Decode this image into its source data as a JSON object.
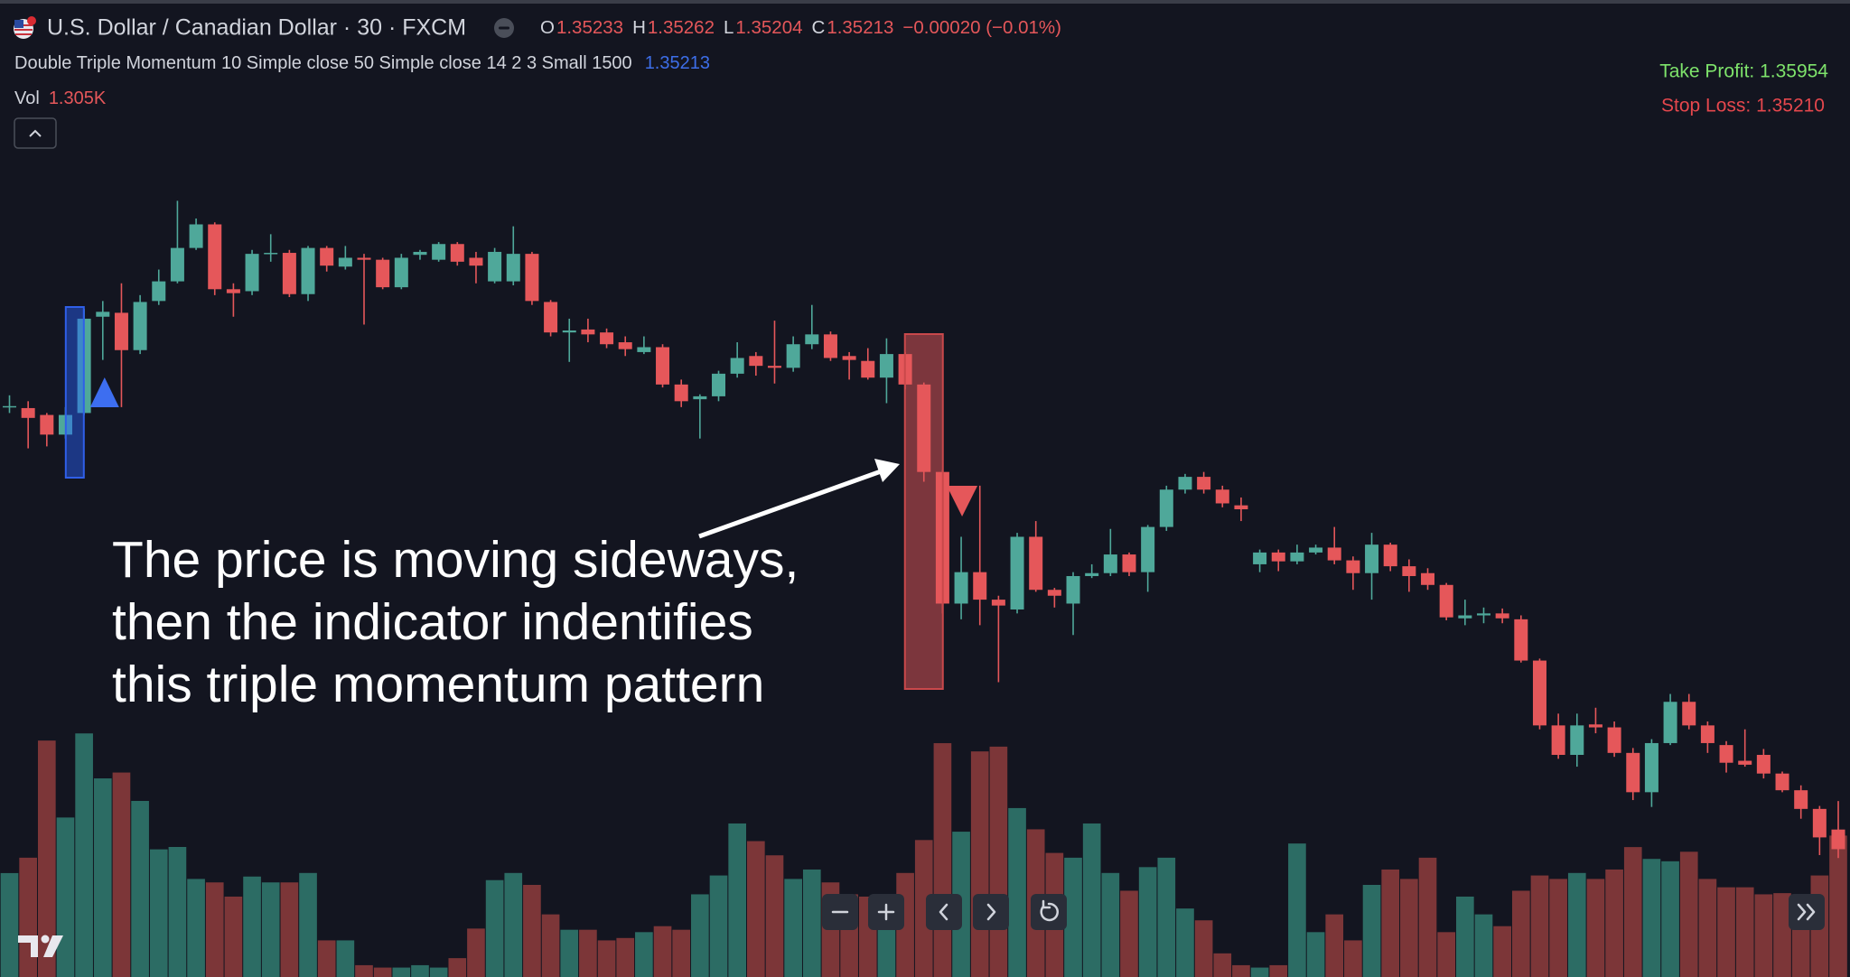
{
  "chart_data": {
    "type": "candlestick",
    "title": "U.S. Dollar / Canadian Dollar · 30 · FXCM",
    "ohlc": [
      {
        "label": "O",
        "value": 1.35233
      },
      {
        "label": "H",
        "value": 1.35262
      },
      {
        "label": "L",
        "value": 1.35204
      },
      {
        "label": "C",
        "value": 1.35213
      }
    ],
    "change": "−0.00020 (−0.01%)",
    "indicator": {
      "name": "Double Triple Momentum 10 Simple close 50 Simple close 14 2 3 Small 1500",
      "value": 1.35213
    },
    "volume_label": {
      "label": "Vol",
      "value": "1.305K"
    },
    "take_profit": "Take Profit: 1.35954",
    "stop_loss": "Stop Loss: 1.35210",
    "annotation": [
      "The price is moving sideways,",
      "then the indicator indentifies",
      "this triple momentum pattern"
    ],
    "up_color": "#4fa89a",
    "down_color": "#e5575a",
    "ylim": [
      1.3515,
      1.359
    ],
    "open": [
      1.35663,
      1.35662,
      1.35655,
      1.35635,
      1.35657,
      1.35755,
      1.35759,
      1.35721,
      1.35771,
      1.35791,
      1.35825,
      1.35849,
      1.35783,
      1.35781,
      1.35819,
      1.3582,
      1.35778,
      1.35825,
      1.35806,
      1.35815,
      1.35813,
      1.35785,
      1.35818,
      1.35813,
      1.35829,
      1.35815,
      1.35791,
      1.35791,
      1.35819,
      1.3577,
      1.35739,
      1.35742,
      1.35739,
      1.35729,
      1.35719,
      1.35724,
      1.35686,
      1.35671,
      1.35674,
      1.35697,
      1.35715,
      1.35705,
      1.35703,
      1.35727,
      1.35737,
      1.35715,
      1.3571,
      1.35693,
      1.35717,
      1.35686,
      1.35597,
      1.35463,
      1.35495,
      1.35467,
      1.35457,
      1.35531,
      1.35477,
      1.35463,
      1.35491,
      1.35494,
      1.35513,
      1.35495,
      1.35541,
      1.35579,
      1.35592,
      1.35579,
      1.35563,
      1.35503,
      1.35515,
      1.35506,
      1.35515,
      1.3552,
      1.35507,
      1.35494,
      1.35523,
      1.35501,
      1.35494,
      1.35482,
      1.35448,
      1.35451,
      1.35453,
      1.35447,
      1.35405,
      1.35339,
      1.35309,
      1.3534,
      1.35337,
      1.35311,
      1.35271,
      1.35321,
      1.35363,
      1.35339,
      1.35319,
      1.35303,
      1.35309,
      1.3529,
      1.35273,
      1.35254,
      1.35233
    ],
    "high": [
      1.35675,
      1.35669,
      1.35657,
      1.35663,
      1.35763,
      1.35771,
      1.35789,
      1.35777,
      1.35803,
      1.35873,
      1.35855,
      1.35851,
      1.35789,
      1.35823,
      1.35839,
      1.35823,
      1.35827,
      1.35827,
      1.35827,
      1.35819,
      1.35815,
      1.35819,
      1.35823,
      1.35831,
      1.35831,
      1.35821,
      1.35825,
      1.35847,
      1.35821,
      1.35772,
      1.35753,
      1.35753,
      1.35743,
      1.35735,
      1.35735,
      1.35727,
      1.35691,
      1.35676,
      1.357,
      1.35729,
      1.35719,
      1.35751,
      1.35735,
      1.35767,
      1.3574,
      1.35719,
      1.35723,
      1.35733,
      1.35719,
      1.35688,
      1.35599,
      1.35531,
      1.35583,
      1.35471,
      1.35535,
      1.35547,
      1.35479,
      1.35495,
      1.35503,
      1.35539,
      1.35515,
      1.35543,
      1.35583,
      1.35595,
      1.35597,
      1.35583,
      1.35571,
      1.35518,
      1.35518,
      1.35523,
      1.35523,
      1.35541,
      1.35511,
      1.35535,
      1.35525,
      1.35508,
      1.35499,
      1.35484,
      1.35467,
      1.35459,
      1.35458,
      1.35451,
      1.35407,
      1.35351,
      1.35351,
      1.35357,
      1.35343,
      1.35316,
      1.35325,
      1.35371,
      1.35371,
      1.35343,
      1.35323,
      1.35335,
      1.35315,
      1.35292,
      1.35278,
      1.35257,
      1.35262
    ],
    "low": [
      1.35657,
      1.35621,
      1.35623,
      1.35631,
      1.35655,
      1.35711,
      1.35663,
      1.35717,
      1.35767,
      1.35789,
      1.35823,
      1.35777,
      1.35755,
      1.35777,
      1.35811,
      1.35775,
      1.35771,
      1.35801,
      1.35803,
      1.35747,
      1.35783,
      1.35783,
      1.35813,
      1.35811,
      1.35807,
      1.35789,
      1.35789,
      1.35787,
      1.35767,
      1.35735,
      1.35709,
      1.35729,
      1.35723,
      1.35715,
      1.35717,
      1.35683,
      1.35663,
      1.35631,
      1.35669,
      1.35693,
      1.35695,
      1.35687,
      1.35699,
      1.35722,
      1.3571,
      1.35691,
      1.35691,
      1.35667,
      1.35681,
      1.35587,
      1.35453,
      1.35447,
      1.35441,
      1.35383,
      1.35453,
      1.35475,
      1.35459,
      1.35431,
      1.35489,
      1.35491,
      1.35491,
      1.35475,
      1.35537,
      1.35575,
      1.35575,
      1.35561,
      1.35547,
      1.35495,
      1.35496,
      1.35503,
      1.35513,
      1.35503,
      1.35477,
      1.35467,
      1.35496,
      1.35475,
      1.35477,
      1.35446,
      1.35441,
      1.35443,
      1.35443,
      1.35403,
      1.35335,
      1.35305,
      1.35297,
      1.35331,
      1.35307,
      1.35263,
      1.35256,
      1.35319,
      1.35335,
      1.35311,
      1.35291,
      1.35297,
      1.35285,
      1.35271,
      1.35244,
      1.35207,
      1.35204
    ],
    "close": [
      1.35664,
      1.35652,
      1.35635,
      1.35655,
      1.35753,
      1.3576,
      1.35721,
      1.3577,
      1.35791,
      1.35825,
      1.35849,
      1.35783,
      1.35779,
      1.35819,
      1.3582,
      1.35778,
      1.35825,
      1.35807,
      1.35815,
      1.35813,
      1.35785,
      1.35815,
      1.35821,
      1.35829,
      1.35811,
      1.35807,
      1.35821,
      1.35819,
      1.35771,
      1.35739,
      1.35741,
      1.35737,
      1.35727,
      1.35722,
      1.35724,
      1.35686,
      1.35669,
      1.35674,
      1.35697,
      1.35713,
      1.35705,
      1.35703,
      1.35727,
      1.35737,
      1.35713,
      1.35711,
      1.35693,
      1.35717,
      1.35686,
      1.35597,
      1.35463,
      1.35495,
      1.35467,
      1.35461,
      1.35531,
      1.35477,
      1.35471,
      1.35491,
      1.35494,
      1.35513,
      1.35495,
      1.35541,
      1.35579,
      1.35592,
      1.35579,
      1.35565,
      1.35559,
      1.35515,
      1.35506,
      1.35515,
      1.3552,
      1.35507,
      1.35494,
      1.35523,
      1.35501,
      1.35491,
      1.35482,
      1.35449,
      1.35451,
      1.35453,
      1.35448,
      1.35405,
      1.35339,
      1.35309,
      1.35339,
      1.35337,
      1.35311,
      1.35271,
      1.35321,
      1.35363,
      1.35339,
      1.35321,
      1.35301,
      1.35299,
      1.3529,
      1.35273,
      1.35254,
      1.35225,
      1.35213
    ],
    "volume": {
      "up_color": "#2c6c64",
      "down_color": "#7c3638",
      "ylim": [
        0,
        2400
      ],
      "values": [
        959,
        1101,
        2182,
        1472,
        2248,
        1833,
        1887,
        1625,
        1178,
        1200,
        905,
        873,
        742,
        927,
        873,
        873,
        960,
        338,
        338,
        109,
        87,
        87,
        109,
        87,
        174,
        447,
        894,
        960,
        850,
        578,
        436,
        436,
        338,
        360,
        414,
        469,
        436,
        763,
        937,
        1417,
        1254,
        1123,
        905,
        992,
        873,
        763,
        742,
        763,
        960,
        1264,
        2158,
        1341,
        2082,
        2126,
        1559,
        1363,
        1145,
        1101,
        1417,
        960,
        796,
        1014,
        1101,
        632,
        523,
        218,
        109,
        87,
        109,
        1232,
        414,
        578,
        338,
        850,
        992,
        905,
        1101,
        414,
        742,
        578,
        469,
        796,
        937,
        905,
        960,
        905,
        992,
        1199,
        1090,
        1068,
        1156,
        905,
        828,
        828,
        763,
        774,
        763,
        937,
        1305
      ]
    }
  }
}
